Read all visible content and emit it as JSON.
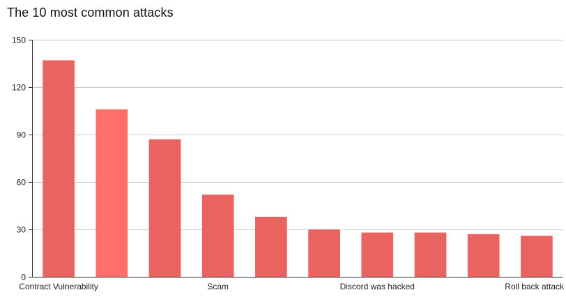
{
  "chart_data": {
    "type": "bar",
    "title": "The 10 most common attacks",
    "xlabel": "",
    "ylabel": "",
    "ylim": [
      0,
      150
    ],
    "yticks": [
      0,
      30,
      60,
      90,
      120,
      150
    ],
    "grid": true,
    "categories": [
      "Contract Vulnerability",
      "",
      "",
      "Scam",
      "",
      "",
      "Discord was hacked",
      "",
      "",
      "Roll back attack"
    ],
    "values": [
      137,
      106,
      87,
      52,
      38,
      30,
      28,
      28,
      27,
      26
    ],
    "colors": {
      "bar": "#e96461",
      "highlight": "#ff6f69",
      "grid": "#cccccc",
      "axis": "#333333"
    },
    "highlight_index": 1
  }
}
